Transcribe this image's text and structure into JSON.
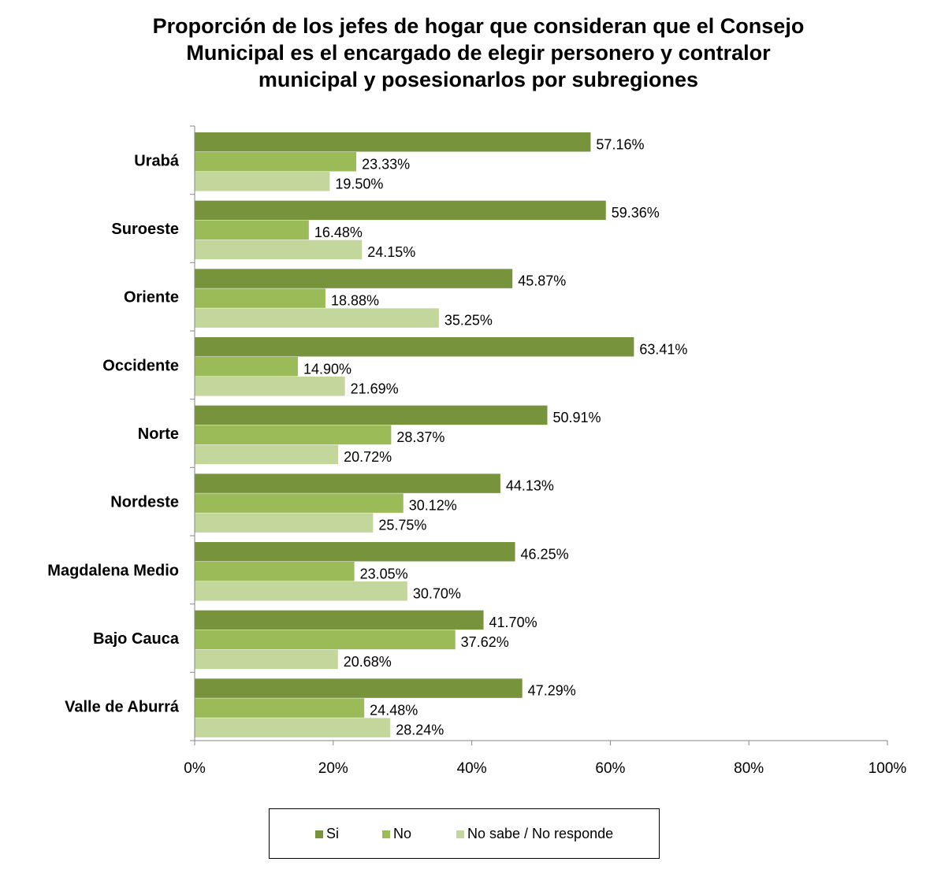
{
  "colors": {
    "si": "#77933c",
    "no": "#9bbb59",
    "ns": "#c3d69b"
  },
  "chart_data": {
    "type": "bar",
    "orientation": "horizontal",
    "title": [
      "Proporción de los jefes de hogar que  consideran que el Consejo",
      "Municipal es el encargado de elegir personero y contralor",
      "municipal y posesionarlos por subregiones"
    ],
    "categories": [
      "Urabá",
      "Suroeste",
      "Oriente",
      "Occidente",
      "Norte",
      "Nordeste",
      "Magdalena Medio",
      "Bajo Cauca",
      "Valle de Aburrá"
    ],
    "series": [
      {
        "name": "Si",
        "values": [
          57.16,
          59.36,
          45.87,
          63.41,
          50.91,
          44.13,
          46.25,
          41.7,
          47.29
        ],
        "labels": [
          "57.16%",
          "59.36%",
          "45.87%",
          "63.41%",
          "50.91%",
          "44.13%",
          "46.25%",
          "41.70%",
          "47.29%"
        ]
      },
      {
        "name": "No",
        "values": [
          23.33,
          16.48,
          18.88,
          14.9,
          28.37,
          30.12,
          23.05,
          37.62,
          24.48
        ],
        "labels": [
          "23.33%",
          "16.48%",
          "18.88%",
          "14.90%",
          "28.37%",
          "30.12%",
          "23.05%",
          "37.62%",
          "24.48%"
        ]
      },
      {
        "name": "No sabe / No responde",
        "values": [
          19.5,
          24.15,
          35.25,
          21.69,
          20.72,
          25.75,
          30.7,
          20.68,
          28.24
        ],
        "labels": [
          "19.50%",
          "24.15%",
          "35.25%",
          "21.69%",
          "20.72%",
          "25.75%",
          "30.70%",
          "20.68%",
          "28.24%"
        ]
      }
    ],
    "xlim": [
      0,
      100
    ],
    "xticks": [
      "0%",
      "20%",
      "40%",
      "60%",
      "80%",
      "100%"
    ],
    "grid": false,
    "legend": "bottom"
  }
}
